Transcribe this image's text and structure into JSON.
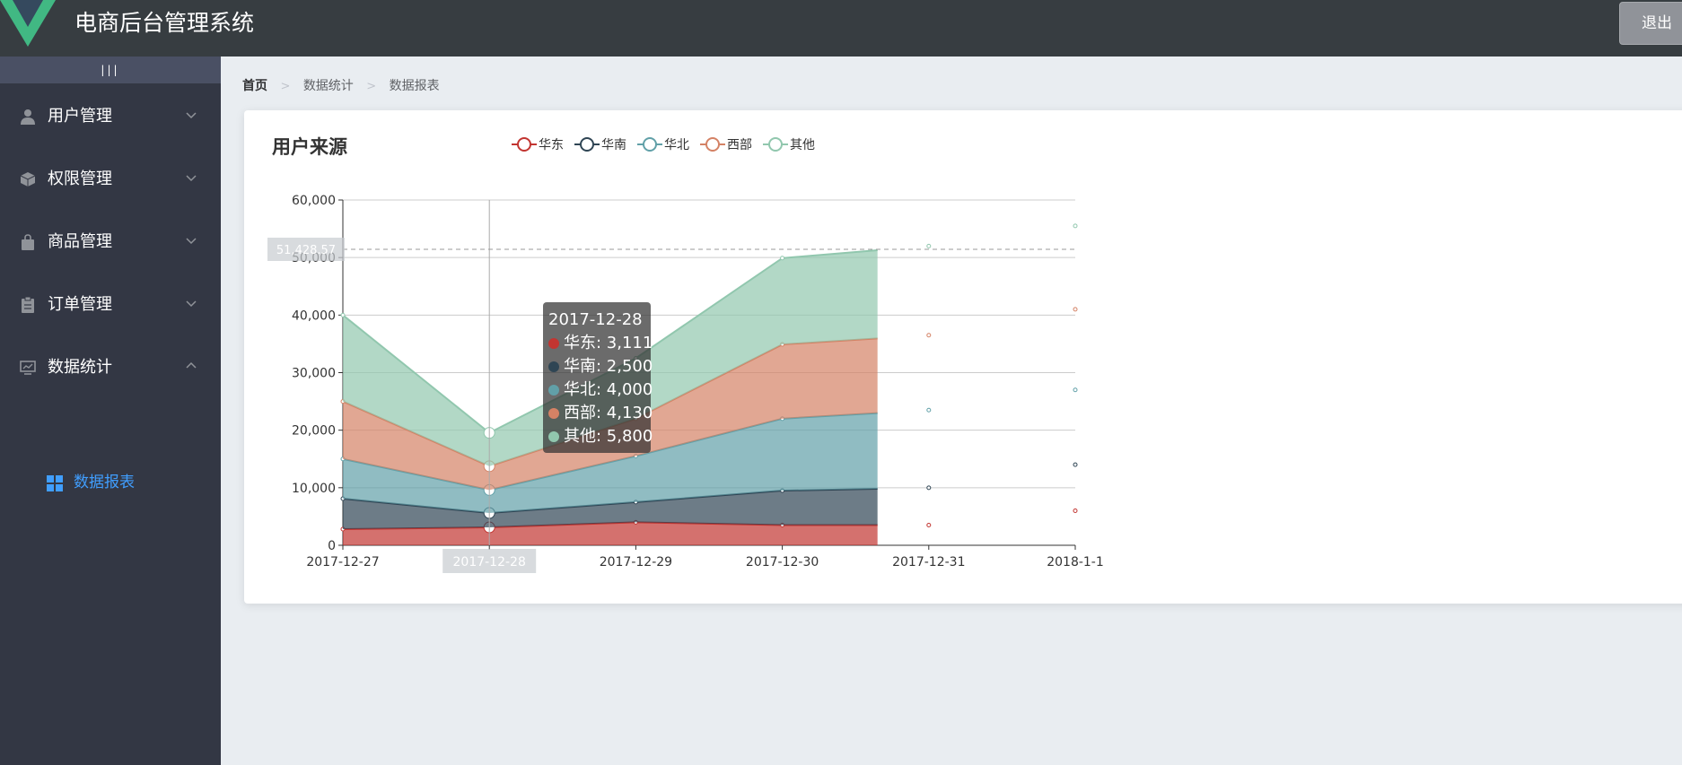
{
  "header": {
    "title": "电商后台管理系统",
    "logout_label": "退出"
  },
  "sidebar": {
    "toggle_label": "|||",
    "items": [
      {
        "label": "用户管理",
        "icon": "user-icon",
        "expanded": false
      },
      {
        "label": "权限管理",
        "icon": "box-icon",
        "expanded": false
      },
      {
        "label": "商品管理",
        "icon": "bag-icon",
        "expanded": false
      },
      {
        "label": "订单管理",
        "icon": "clipboard-icon",
        "expanded": false
      },
      {
        "label": "数据统计",
        "icon": "monitor-chart-icon",
        "expanded": true
      }
    ],
    "active_sub_item": {
      "label": "数据报表",
      "icon": "grid-icon"
    }
  },
  "breadcrumb": [
    "首页",
    "数据统计",
    "数据报表"
  ],
  "card": {
    "title": "用户来源"
  },
  "colors": {
    "header_bg": "#373d41",
    "sidebar_bg": "#333744",
    "active": "#409eff",
    "series": [
      "#c23531",
      "#2f4554",
      "#61a0a8",
      "#d48265",
      "#91c7ae"
    ]
  },
  "chart_data": {
    "type": "area",
    "stacked": true,
    "x": [
      "2017-12-27",
      "2017-12-28",
      "2017-12-29",
      "2017-12-30",
      "2017-12-31",
      "2018-1-1"
    ],
    "ylim": [
      0,
      60000
    ],
    "yticks": [
      "0",
      "10,000",
      "20,000",
      "30,000",
      "40,000",
      "50,000",
      "60,000"
    ],
    "legend_position": "top",
    "grid": true,
    "series": [
      {
        "name": "华东",
        "values": [
          2800,
          3111,
          4000,
          3500,
          3500,
          6000
        ]
      },
      {
        "name": "华南",
        "values": [
          5300,
          2500,
          3500,
          6000,
          6500,
          8000
        ]
      },
      {
        "name": "华北",
        "values": [
          6900,
          4000,
          8000,
          12500,
          13500,
          13000
        ]
      },
      {
        "name": "西部",
        "values": [
          10000,
          4130,
          6500,
          12900,
          13000,
          14000
        ]
      },
      {
        "name": "其他",
        "values": [
          15000,
          5800,
          10500,
          15000,
          15500,
          14500
        ]
      }
    ],
    "crosshair": {
      "x_label": "2017-12-28",
      "y_label": "51,428.57"
    },
    "tooltip": {
      "title": "2017-12-28",
      "rows": [
        "华东: 3,111",
        "华南: 2,500",
        "华北: 4,000",
        "西部: 4,130",
        "其他: 5,800"
      ]
    }
  }
}
